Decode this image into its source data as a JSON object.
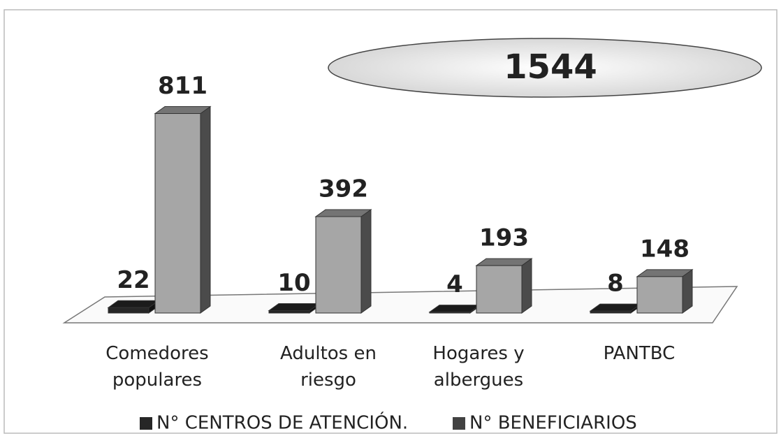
{
  "chart_data": {
    "type": "bar3d",
    "annotation": "1544",
    "categories": [
      "Comedores populares",
      "Adultos en riesgo",
      "Hogares y albergues",
      "PANTBC"
    ],
    "series": [
      {
        "name": "N° CENTROS DE ATENCIÓN.",
        "color": "#262626",
        "values": [
          22,
          10,
          4,
          8
        ]
      },
      {
        "name": "N° BENEFICIARIOS",
        "color": "#a6a6a6",
        "values": [
          811,
          392,
          193,
          148
        ]
      }
    ]
  }
}
